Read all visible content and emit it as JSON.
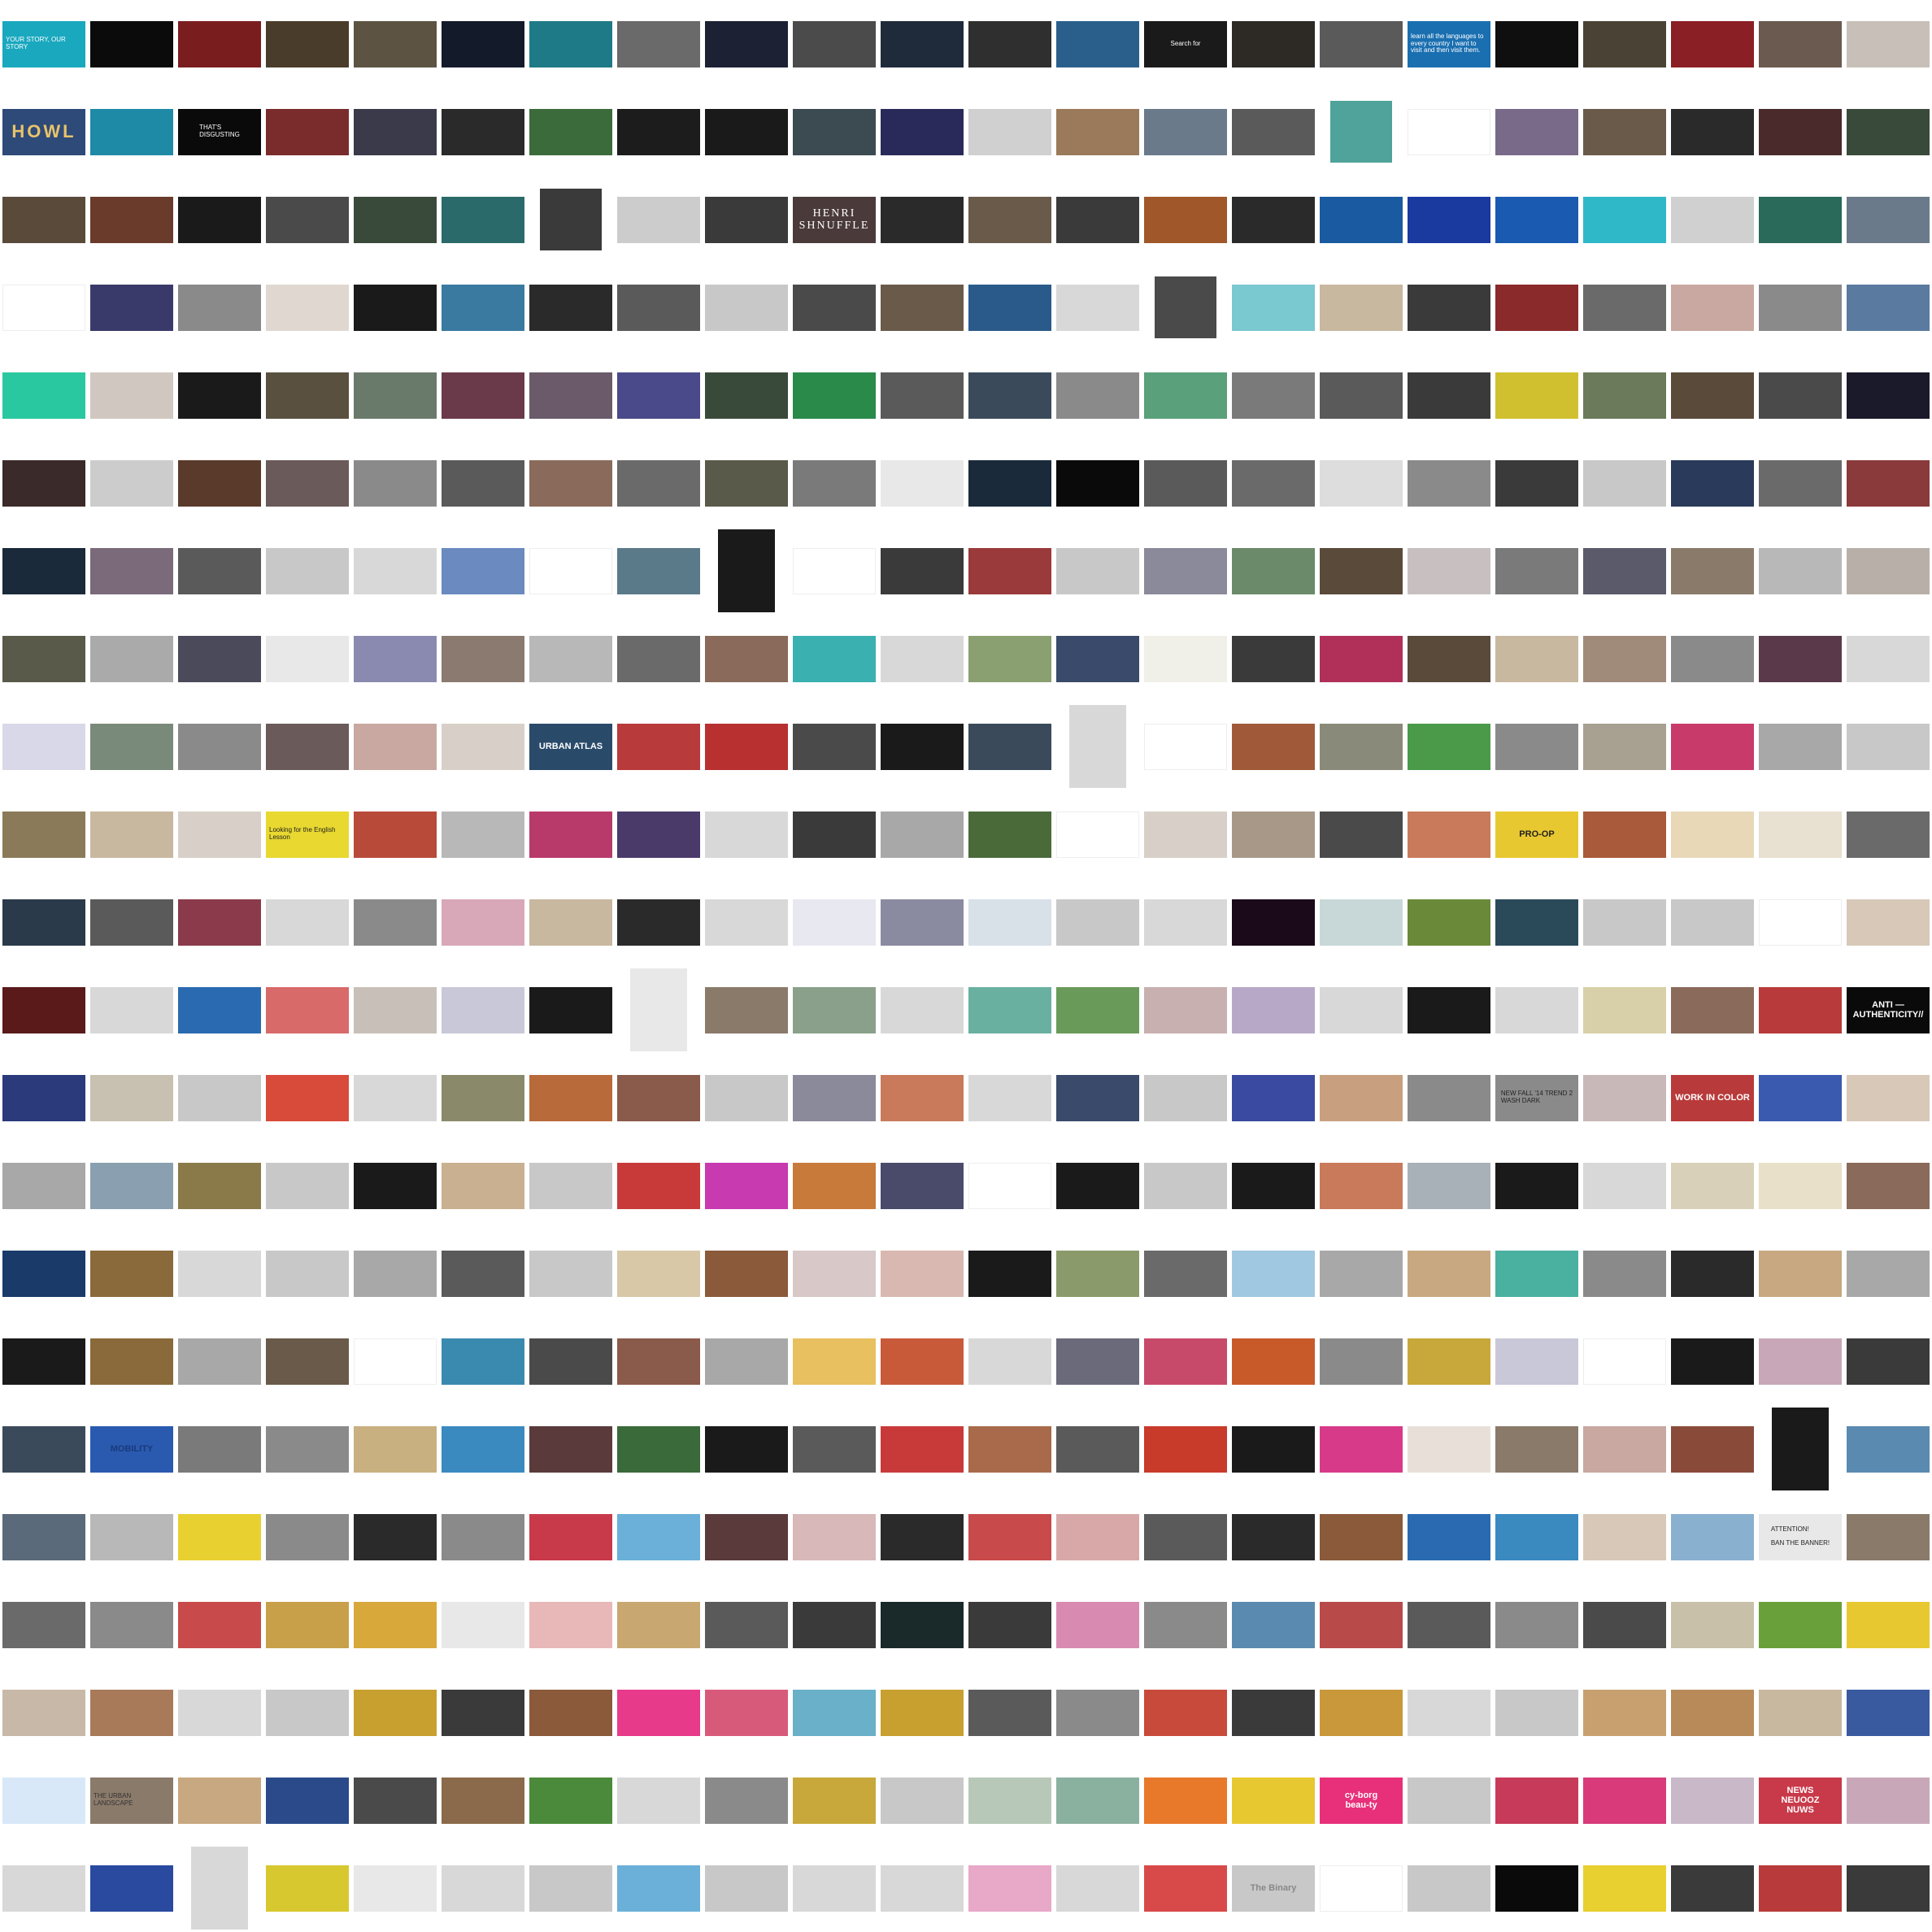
{
  "gallery": {
    "columns": 22,
    "rows": 22,
    "captions": [
      {
        "row": 0,
        "col": 0,
        "text": "YOUR STORY, OUR STORY",
        "fg": "#ffffff",
        "style": "tiny"
      },
      {
        "row": 0,
        "col": 13,
        "text": "Search for",
        "fg": "#ffffff",
        "style": "tiny"
      },
      {
        "row": 0,
        "col": 16,
        "text": "learn all the languages to every country I want to visit and then visit them.",
        "fg": "#ffffff",
        "style": "tiny"
      },
      {
        "row": 1,
        "col": 0,
        "text": "HOWL",
        "fg": "#e8c36a",
        "style": "big"
      },
      {
        "row": 1,
        "col": 2,
        "text": "THAT'S\nDISGUSTING",
        "fg": "#ffffff",
        "style": "tiny"
      },
      {
        "row": 2,
        "col": 9,
        "text": "HENRI\nSHNUFFLE",
        "fg": "#ffffff",
        "style": "serif"
      },
      {
        "row": 8,
        "col": 6,
        "text": "URBAN ATLAS",
        "fg": "#ffffff",
        "style": "plain"
      },
      {
        "row": 9,
        "col": 3,
        "text": "Looking for the English Lesson",
        "fg": "#222222",
        "style": "tiny"
      },
      {
        "row": 9,
        "col": 17,
        "text": "PRO-OP",
        "fg": "#222222",
        "style": "plain"
      },
      {
        "row": 11,
        "col": 21,
        "text": "ANTI — AUTHENTICITY//",
        "fg": "#ffffff",
        "style": "plain"
      },
      {
        "row": 12,
        "col": 17,
        "text": "NEW FALL '14 TREND 2\nWASH DARK",
        "fg": "#222222",
        "style": "tiny"
      },
      {
        "row": 12,
        "col": 19,
        "text": "WORK IN COLOR",
        "fg": "#ffffff",
        "style": "plain"
      },
      {
        "row": 16,
        "col": 1,
        "text": "MOBILITY",
        "fg": "#1a3a7a",
        "style": "plain"
      },
      {
        "row": 17,
        "col": 20,
        "text": "ATTENTION!\n\nBAN THE BANNER!",
        "fg": "#222222",
        "style": "tiny"
      },
      {
        "row": 20,
        "col": 1,
        "text": "THE URBAN LANDSCAPE",
        "fg": "#333333",
        "style": "tiny"
      },
      {
        "row": 20,
        "col": 15,
        "text": "cy-borg\nbeau-ty",
        "fg": "#ffffff",
        "style": "plain"
      },
      {
        "row": 20,
        "col": 20,
        "text": "NEWS\nNEUOOZ\nNUWS",
        "fg": "#ffffff",
        "style": "plain"
      },
      {
        "row": 21,
        "col": 14,
        "text": "The Binary",
        "fg": "#888888",
        "style": "plain"
      }
    ],
    "thumbnails": [
      [
        "#1aa8bf",
        "#0b0b0b",
        "#7a1d1f",
        "#4a3c2a",
        "#5c5342",
        "#131a2a",
        "#1e7a86",
        "#6a6a6a",
        "#1c2233",
        "#4b4b4b",
        "#1f2b3a",
        "#2f2f2f",
        "#2a5f8c",
        "#1a1a1a",
        "#2d2a25",
        "#5a5a5a",
        "#1a6fb0",
        "#0f0f0f",
        "#4a4234",
        "#8a1f26",
        "#6b5a50",
        "#c8c0b8"
      ],
      [
        "#2e4a78",
        "#1e8aa6",
        "#0a0a0a",
        "#7a2b2b",
        "#3a3a4a",
        "#2a2a2a",
        "#3b6b3b",
        "#1c1c1c",
        "#1a1a1a",
        "#3c4a52",
        "#2a2a5a",
        "#d0d0d0",
        "#9a7a5a",
        "#6a7a8a",
        "#5a5a5a",
        "#4fa39a",
        "#ffffff",
        "#7a6a8a",
        "#6a5a4a",
        "#2a2a2a",
        "#4a2a2a",
        "#3a4a3a"
      ],
      [
        "#5a4a3a",
        "#6a3a2a",
        "#1a1a1a",
        "#4a4a4a",
        "#3a4a3a",
        "#2a6a6a",
        "#3a3a3a",
        "#cccccc",
        "#3a3a3a",
        "#4a3a3a",
        "#2a2a2a",
        "#6a5a4a",
        "#3a3a3a",
        "#a0582a",
        "#2a2a2a",
        "#1a5aa0",
        "#1a3aa0",
        "#1a5ab0",
        "#2fb8c8",
        "#d0d0d0",
        "#2a6a5a",
        "#6a7a8a"
      ],
      [
        "#ffffff",
        "#3a3a6a",
        "#8a8a8a",
        "#e0d8d0",
        "#1a1a1a",
        "#3a7aa0",
        "#2a2a2a",
        "#5a5a5a",
        "#c8c8c8",
        "#4a4a4a",
        "#6a5a4a",
        "#2a5a8a",
        "#d8d8d8",
        "#4a4a4a",
        "#7ac8d0",
        "#c8b8a0",
        "#3a3a3a",
        "#8a2a2a",
        "#6a6a6a",
        "#c8a8a0",
        "#8a8a8a",
        "#5a7aa0"
      ],
      [
        "#2ac8a0",
        "#d0c8c0",
        "#1a1a1a",
        "#5a5040",
        "#6a7a6a",
        "#6a3a4a",
        "#6a5a6a",
        "#4a4a8a",
        "#3a4a3a",
        "#2a8a4a",
        "#5a5a5a",
        "#3a4a5a",
        "#8a8a8a",
        "#5aa07a",
        "#7a7a7a",
        "#5a5a5a",
        "#3a3a3a",
        "#d0c030",
        "#6a7a5a",
        "#5a4a3a",
        "#4a4a4a",
        "#1a1a2a"
      ],
      [
        "#3a2a2a",
        "#cccccc",
        "#5a3a2a",
        "#6a5a5a",
        "#8a8a8a",
        "#5a5a5a",
        "#8a6a5a",
        "#6a6a6a",
        "#5a5a4a",
        "#7a7a7a",
        "#e8e8e8",
        "#1a2a3a",
        "#0a0a0a",
        "#5a5a5a",
        "#6a6a6a",
        "#dddddd",
        "#8a8a8a",
        "#3a3a3a",
        "#c8c8c8",
        "#2a3a5a",
        "#6a6a6a",
        "#8a3a3a"
      ],
      [
        "#1a2a3a",
        "#7a6a7a",
        "#5a5a5a",
        "#c8c8c8",
        "#d8d8d8",
        "#6a8ac0",
        "#ffffff",
        "#5a7a8a",
        "#1a1a1a",
        "#ffffff",
        "#3a3a3a",
        "#9a3a3a",
        "#c8c8c8",
        "#8a8a9a",
        "#6a8a6a",
        "#5a4a3a",
        "#c8c0c0",
        "#7a7a7a",
        "#5a5a6a",
        "#8a7a6a",
        "#b8b8b8",
        "#b8b0a8"
      ],
      [
        "#5a5a4a",
        "#aaaaaa",
        "#4a4a5a",
        "#e8e8e8",
        "#8a8ab0",
        "#8a7a70",
        "#b8b8b8",
        "#6a6a6a",
        "#8a6a5a",
        "#3ab0b0",
        "#d8d8d8",
        "#8aa070",
        "#3a4a6a",
        "#f0f0e8",
        "#3a3a3a",
        "#b0305a",
        "#5a4a3a",
        "#c8b8a0",
        "#a08a7a",
        "#8a8a8a",
        "#5a3a4a",
        "#d8d8d8"
      ],
      [
        "#d8d8e8",
        "#7a8a7a",
        "#8a8a8a",
        "#6a5a5a",
        "#c8a8a0",
        "#d8d0c8",
        "#2a4a6a",
        "#b83a3a",
        "#b83030",
        "#4a4a4a",
        "#1a1a1a",
        "#3a4a5a",
        "#d8d8d8",
        "#ffffff",
        "#a05a3a",
        "#8a8a7a",
        "#4a9a4a",
        "#8a8a8a",
        "#a8a090",
        "#c83a6a",
        "#a8a8a8",
        "#c8c8c8"
      ],
      [
        "#8a7a5a",
        "#c8b8a0",
        "#d8d0c8",
        "#e8d830",
        "#b84a3a",
        "#b8b8b8",
        "#b83a6a",
        "#4a3a6a",
        "#d8d8d8",
        "#3a3a3a",
        "#a8a8a8",
        "#4a6a3a",
        "#ffffff",
        "#d8d0c8",
        "#a89888",
        "#4a4a4a",
        "#c87a5a",
        "#e8c830",
        "#a85a3a",
        "#e8d8b8",
        "#e8e0d0",
        "#6a6a6a"
      ],
      [
        "#2a3a4a",
        "#5a5a5a",
        "#8a3a4a",
        "#d8d8d8",
        "#8a8a8a",
        "#d8a8b8",
        "#c8b8a0",
        "#2a2a2a",
        "#d8d8d8",
        "#e8e8f0",
        "#8a8aa0",
        "#d8e0e8",
        "#c8c8c8",
        "#d8d8d8",
        "#1a0a1a",
        "#c8d8d8",
        "#6a8a3a",
        "#2a4a5a",
        "#c8c8c8",
        "#c8c8c8",
        "#ffffff",
        "#d8c8b8"
      ],
      [
        "#5a1a1a",
        "#d8d8d8",
        "#2a6ab0",
        "#d86a6a",
        "#c8c0b8",
        "#c8c8d8",
        "#1a1a1a",
        "#e8e8e8",
        "#8a7a6a",
        "#8aa08a",
        "#d8d8d8",
        "#6ab0a0",
        "#6a9a5a",
        "#c8b0b0",
        "#b8a8c8",
        "#d8d8d8",
        "#1a1a1a",
        "#d8d8d8",
        "#d8d0a8",
        "#8a6a5a",
        "#b83a3a",
        "#0a0a0a"
      ],
      [
        "#2a3a7a",
        "#c8c0b0",
        "#c8c8c8",
        "#d84a3a",
        "#d8d8d8",
        "#8a8a6a",
        "#b86a3a",
        "#8a5a4a",
        "#c8c8c8",
        "#8a8a9a",
        "#c87a5a",
        "#d8d8d8",
        "#3a4a6a",
        "#c8c8c8",
        "#3a4aa0",
        "#c8a080",
        "#8a8a8a",
        "#8a8a8a",
        "#c8b8b8",
        "#b83a3a",
        "#3a5ab0",
        "#d8c8b8"
      ],
      [
        "#a8a8a8",
        "#8aa0b0",
        "#8a7a4a",
        "#c8c8c8",
        "#1a1a1a",
        "#c8b090",
        "#c8c8c8",
        "#c83a3a",
        "#c83ab0",
        "#c87a3a",
        "#4a4a6a",
        "#ffffff",
        "#1a1a1a",
        "#c8c8c8",
        "#1a1a1a",
        "#c87a5a",
        "#a8b0b8",
        "#1a1a1a",
        "#d8d8d8",
        "#d8d0b8",
        "#e8e0c8",
        "#8a6a5a"
      ],
      [
        "#1a3a6a",
        "#8a6a3a",
        "#d8d8d8",
        "#c8c8c8",
        "#a8a8a8",
        "#5a5a5a",
        "#c8c8c8",
        "#d8c8a8",
        "#8a5a3a",
        "#d8c8c8",
        "#d8b8b0",
        "#1a1a1a",
        "#8a9a6a",
        "#6a6a6a",
        "#a0c8e0",
        "#a8a8a8",
        "#c8a880",
        "#4ab0a0",
        "#8a8a8a",
        "#2a2a2a",
        "#c8a880",
        "#a8a8a8"
      ],
      [
        "#1a1a1a",
        "#8a6a3a",
        "#a8a8a8",
        "#6a5a4a",
        "#ffffff",
        "#3a8ab0",
        "#4a4a4a",
        "#8a5a4a",
        "#a8a8a8",
        "#e8c060",
        "#c85a3a",
        "#d8d8d8",
        "#6a6a7a",
        "#c84a6a",
        "#c85a2a",
        "#8a8a8a",
        "#c8a83a",
        "#c8c8d8",
        "#ffffff",
        "#1a1a1a",
        "#c8a8b8",
        "#3a3a3a"
      ],
      [
        "#3a4a5a",
        "#2a5ab0",
        "#7a7a7a",
        "#8a8a8a",
        "#c8b080",
        "#3a8ac0",
        "#5a3a3a",
        "#3a6a3a",
        "#1a1a1a",
        "#5a5a5a",
        "#c83a3a",
        "#a86a4a",
        "#5a5a5a",
        "#c83a2a",
        "#1a1a1a",
        "#d83a8a",
        "#e8e0d8",
        "#8a7a6a",
        "#c8a8a0",
        "#8a4a3a",
        "#1a1a1a",
        "#5a8ab0"
      ],
      [
        "#5a6a7a",
        "#b8b8b8",
        "#e8d030",
        "#8a8a8a",
        "#2a2a2a",
        "#8a8a8a",
        "#c83a4a",
        "#6ab0d8",
        "#5a3a3a",
        "#d8b8b8",
        "#2a2a2a",
        "#c84a4a",
        "#d8a8a8",
        "#5a5a5a",
        "#2a2a2a",
        "#8a5a3a",
        "#2a6ab0",
        "#3a8ac0",
        "#d8c8b8",
        "#8ab0d0",
        "#e8e8e8",
        "#8a7a6a"
      ],
      [
        "#6a6a6a",
        "#8a8a8a",
        "#c84a4a",
        "#c8a04a",
        "#d8a83a",
        "#e8e8e8",
        "#e8b8b8",
        "#c8a870",
        "#5a5a5a",
        "#3a3a3a",
        "#1a2a2a",
        "#3a3a3a",
        "#d88ab0",
        "#8a8a8a",
        "#5a8ab0",
        "#b84a4a",
        "#5a5a5a",
        "#8a8a8a",
        "#4a4a4a",
        "#c8c0a8",
        "#6aa03a",
        "#e8c830"
      ],
      [
        "#c8b8a8",
        "#a87a5a",
        "#d8d8d8",
        "#c8c8c8",
        "#c8a030",
        "#3a3a3a",
        "#8a5a3a",
        "#e83a8a",
        "#d85a7a",
        "#6ab0c8",
        "#c8a030",
        "#5a5a5a",
        "#8a8a8a",
        "#c84a3a",
        "#3a3a3a",
        "#c8983a",
        "#d8d8d8",
        "#c8c8c8",
        "#c8a070",
        "#b88a5a",
        "#c8b8a0",
        "#3a5aa0"
      ],
      [
        "#d8e8f8",
        "#8a7a6a",
        "#c8a880",
        "#2a4a8a",
        "#4a4a4a",
        "#8a6a4a",
        "#4a8a3a",
        "#d8d8d8",
        "#8a8a8a",
        "#c8a83a",
        "#c8c8c8",
        "#b8c8b8",
        "#8ab0a0",
        "#e8782a",
        "#e8c830",
        "#e8307a",
        "#c8c8c8",
        "#c83a5a",
        "#d83a7a",
        "#c8b8c8",
        "#c83a4a",
        "#c8a8b8"
      ],
      [
        "#d8d8d8",
        "#2a4aa0",
        "#d8d8d8",
        "#d8c830",
        "#e8e8e8",
        "#d8d8d8",
        "#c8c8c8",
        "#6ab0d8",
        "#c8c8c8",
        "#d8d8d8",
        "#d8d8d8",
        "#e8a8c8",
        "#d8d8d8",
        "#d84a4a",
        "#c8c8c8",
        "#ffffff",
        "#c8c8c8",
        "#0a0a0a",
        "#e8d030",
        "#3a3a3a",
        "#b83a3a",
        "#3a3a3a"
      ]
    ]
  }
}
